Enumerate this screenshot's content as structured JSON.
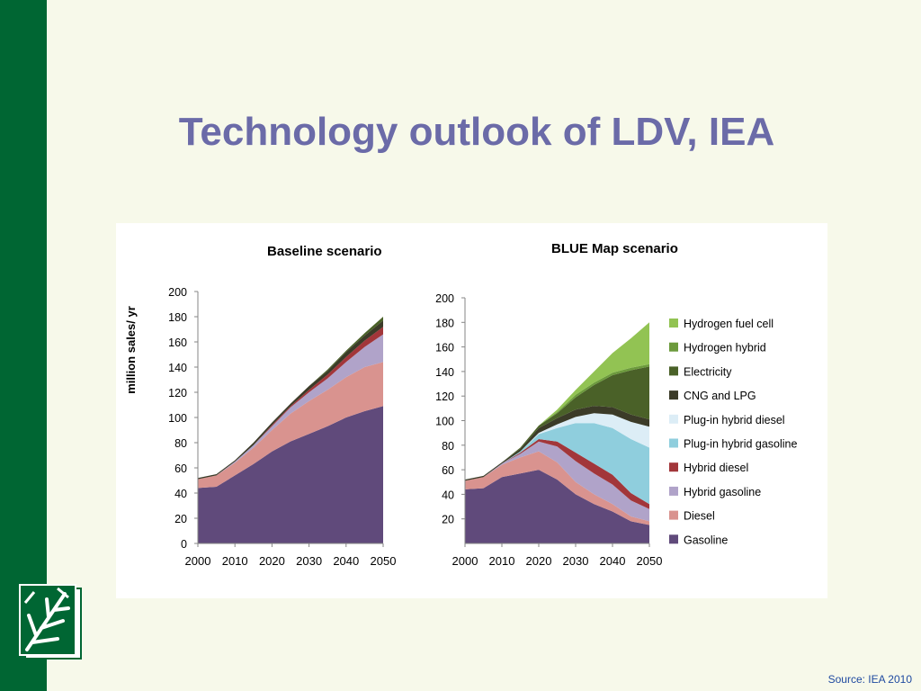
{
  "slide": {
    "title": "Technology outlook of LDV, IEA",
    "source": "Source: IEA 2010"
  },
  "chart_data": [
    {
      "type": "area",
      "stacked": true,
      "title": "Baseline scenario",
      "ylabel": "million sales/ yr",
      "xlabel": "",
      "x": [
        2000,
        2005,
        2010,
        2015,
        2020,
        2025,
        2030,
        2035,
        2040,
        2045,
        2050
      ],
      "xticks": [
        2000,
        2010,
        2020,
        2030,
        2040,
        2050
      ],
      "ylim": [
        0,
        200
      ],
      "yticks": [
        0,
        20,
        40,
        60,
        80,
        100,
        120,
        140,
        160,
        180,
        200
      ],
      "series": [
        {
          "name": "Gasoline",
          "values": [
            44,
            45,
            54,
            63,
            73,
            81,
            87,
            93,
            100,
            105,
            109
          ]
        },
        {
          "name": "Diesel",
          "values": [
            7,
            9,
            10,
            13,
            17,
            22,
            26,
            29,
            32,
            35,
            35
          ]
        },
        {
          "name": "Hybrid gasoline",
          "values": [
            0,
            0,
            1,
            2,
            3,
            5,
            7,
            9,
            12,
            16,
            22
          ]
        },
        {
          "name": "Hybrid diesel",
          "values": [
            0,
            0,
            0,
            0,
            1,
            1,
            2,
            3,
            4,
            5,
            6
          ]
        },
        {
          "name": "Plug-in hybrid gasoline",
          "values": [
            0,
            0,
            0,
            0,
            0,
            0,
            0,
            0,
            0,
            0,
            0
          ]
        },
        {
          "name": "Plug-in hybrid diesel",
          "values": [
            0,
            0,
            0,
            0,
            0,
            0,
            0,
            0,
            0,
            0,
            0
          ]
        },
        {
          "name": "CNG and LPG",
          "values": [
            1,
            1,
            1,
            2,
            2,
            2,
            3,
            3,
            4,
            4,
            5
          ]
        },
        {
          "name": "Electricity",
          "values": [
            0,
            0,
            0,
            0,
            0,
            0,
            0,
            1,
            1,
            2,
            3
          ]
        },
        {
          "name": "Hydrogen hybrid",
          "values": [
            0,
            0,
            0,
            0,
            0,
            0,
            0,
            0,
            0,
            0,
            0
          ]
        },
        {
          "name": "Hydrogen fuel cell",
          "values": [
            0,
            0,
            0,
            0,
            0,
            0,
            0,
            0,
            0,
            0,
            0
          ]
        }
      ]
    },
    {
      "type": "area",
      "stacked": true,
      "title": "BLUE Map scenario",
      "xlabel": "",
      "ylabel": "",
      "x": [
        2000,
        2005,
        2010,
        2015,
        2020,
        2025,
        2030,
        2035,
        2040,
        2045,
        2050
      ],
      "xticks": [
        2000,
        2010,
        2020,
        2030,
        2040,
        2050
      ],
      "ylim": [
        0,
        200
      ],
      "yticks": [
        20,
        40,
        60,
        80,
        100,
        120,
        140,
        160,
        180,
        200
      ],
      "series": [
        {
          "name": "Gasoline",
          "values": [
            44,
            45,
            54,
            57,
            60,
            52,
            40,
            32,
            26,
            18,
            15
          ]
        },
        {
          "name": "Diesel",
          "values": [
            7,
            9,
            10,
            13,
            15,
            14,
            10,
            8,
            6,
            4,
            3
          ]
        },
        {
          "name": "Hybrid gasoline",
          "values": [
            0,
            0,
            1,
            3,
            8,
            13,
            17,
            17,
            16,
            13,
            10
          ]
        },
        {
          "name": "Hybrid diesel",
          "values": [
            0,
            0,
            0,
            1,
            2,
            4,
            7,
            8,
            8,
            6,
            4
          ]
        },
        {
          "name": "Plug-in hybrid gasoline",
          "values": [
            0,
            0,
            0,
            1,
            4,
            11,
            24,
            33,
            38,
            44,
            46
          ]
        },
        {
          "name": "Plug-in hybrid diesel",
          "values": [
            0,
            0,
            0,
            0,
            1,
            3,
            5,
            8,
            11,
            14,
            17
          ]
        },
        {
          "name": "CNG and LPG",
          "values": [
            1,
            1,
            1,
            2,
            4,
            5,
            6,
            6,
            6,
            6,
            6
          ]
        },
        {
          "name": "Electricity",
          "values": [
            0,
            0,
            0,
            1,
            2,
            4,
            10,
            17,
            26,
            36,
            43
          ]
        },
        {
          "name": "Hydrogen hybrid",
          "values": [
            0,
            0,
            0,
            0,
            0,
            1,
            2,
            2,
            2,
            2,
            2
          ]
        },
        {
          "name": "Hydrogen fuel cell",
          "values": [
            0,
            0,
            0,
            0,
            0,
            2,
            4,
            9,
            16,
            24,
            34
          ]
        }
      ]
    }
  ],
  "legend": [
    {
      "name": "Hydrogen fuel cell",
      "color": "#92c353"
    },
    {
      "name": "Hydrogen hybrid",
      "color": "#6c9a3c"
    },
    {
      "name": "Electricity",
      "color": "#4a6128"
    },
    {
      "name": "CNG and LPG",
      "color": "#3b3b28"
    },
    {
      "name": "Plug-in hybrid diesel",
      "color": "#dcedf6"
    },
    {
      "name": "Plug-in hybrid gasoline",
      "color": "#8fcedd"
    },
    {
      "name": "Hybrid diesel",
      "color": "#a2363a"
    },
    {
      "name": "Hybrid gasoline",
      "color": "#b0a3c9"
    },
    {
      "name": "Diesel",
      "color": "#d9938f"
    },
    {
      "name": "Gasoline",
      "color": "#604a7b"
    }
  ]
}
